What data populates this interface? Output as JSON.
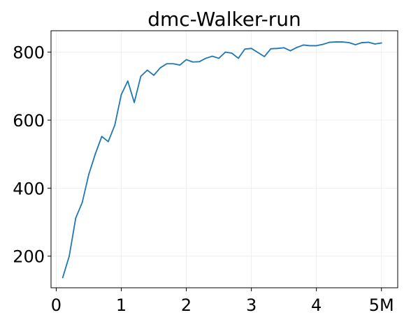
{
  "chart_data": {
    "type": "line",
    "title": "dmc-Walker-run",
    "xlabel": "",
    "ylabel": "",
    "x_ticks": [
      {
        "value": 0,
        "label": "0"
      },
      {
        "value": 1,
        "label": "1"
      },
      {
        "value": 2,
        "label": "2"
      },
      {
        "value": 3,
        "label": "3"
      },
      {
        "value": 4,
        "label": "4"
      },
      {
        "value": 5,
        "label": "5M"
      }
    ],
    "y_ticks": [
      {
        "value": 200,
        "label": "200"
      },
      {
        "value": 400,
        "label": "400"
      },
      {
        "value": 600,
        "label": "600"
      },
      {
        "value": 800,
        "label": "800"
      }
    ],
    "xlim": [
      -0.08,
      5.25
    ],
    "ylim": [
      107,
      863
    ],
    "grid": true,
    "colors": {
      "series": "#1f77b4",
      "grid": "#ebebeb",
      "axis": "#000000"
    },
    "series": [
      {
        "x": [
          0.1,
          0.2,
          0.3,
          0.4,
          0.5,
          0.6,
          0.7,
          0.8,
          0.9,
          1.0,
          1.1,
          1.2,
          1.3,
          1.4,
          1.5,
          1.6,
          1.7,
          1.8,
          1.9,
          2.0,
          2.1,
          2.2,
          2.3,
          2.4,
          2.5,
          2.6,
          2.7,
          2.8,
          2.9,
          3.0,
          3.1,
          3.2,
          3.3,
          3.4,
          3.5,
          3.6,
          3.7,
          3.8,
          3.9,
          4.0,
          4.1,
          4.2,
          4.3,
          4.4,
          4.5,
          4.6,
          4.7,
          4.8,
          4.9,
          5.0
        ],
        "y": [
          137,
          200,
          312,
          358,
          440,
          500,
          552,
          537,
          585,
          675,
          715,
          652,
          729,
          747,
          732,
          754,
          766,
          766,
          762,
          778,
          771,
          772,
          782,
          788,
          782,
          800,
          797,
          782,
          809,
          811,
          799,
          787,
          810,
          811,
          813,
          804,
          814,
          821,
          819,
          819,
          823,
          829,
          830,
          830,
          828,
          822,
          828,
          829,
          824,
          827
        ]
      }
    ]
  }
}
